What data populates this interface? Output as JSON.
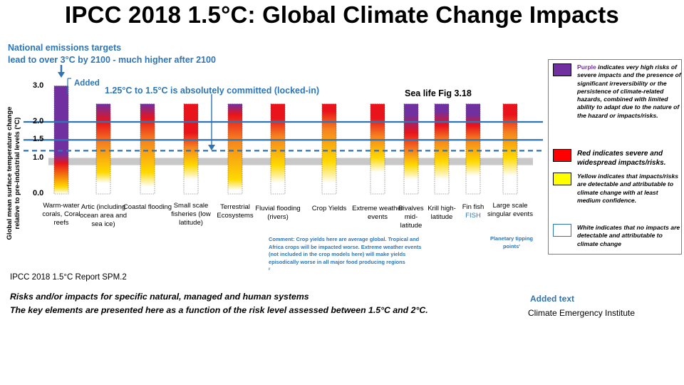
{
  "title": "IPCC 2018 1.5°C: Global Climate Change Impacts",
  "annotations": {
    "national_targets_line1": "National emissions targets",
    "national_targets_line2": "lead to over 3°C by 2100  - much higher after 2100",
    "added": "Added",
    "locked_in": "1.25°C  to 1.5°C is absolutely committed (locked-in)",
    "sea_life": "Sea life Fig 3.18",
    "comment": "Comment:  Crop yields here are average  global.  Tropical  and  Africa  crops will be impacted  worse.  Extreme weather events (not included in the crop models here) will make  yields episodically worse in all  major  food producing regions",
    "comment_tail": "r",
    "planetary_tipping": "Planetary tipping points'",
    "report_ref": "IPCC 2018 1.5°C Report SPM.2",
    "risk_line1": "Risks and/or impacts for specific natural, managed and human systems",
    "risk_line2": "The key elements are presented here as a function of the risk level assessed between 1.5°C and 2°C.",
    "added_text": "Added text",
    "institute": "Climate Emergency Institute"
  },
  "legend": [
    {
      "color": "#7030a0",
      "lead": "Purple",
      "text": " indicates very high risks of severe impacts and the presence of significant irreversibility or the persistence of climate-related hazards, combined with limited ability to adapt due to the nature of the hazard or impacts/risks."
    },
    {
      "color": "#ff0000",
      "lead": "",
      "text": "Red indicates severe and widespread impacts/risks."
    },
    {
      "color": "#ffff00",
      "lead": "",
      "text": "Yellow indicates that impacts/risks are detectable and attributable to climate change with at least medium confidence."
    },
    {
      "color": "#ffffff",
      "lead": "",
      "text": "White indicates that no impacts are detectable and attributable to climate change"
    }
  ],
  "colors": {
    "purple": "#7030a0",
    "red": "#e8131b",
    "orange": "#f58220",
    "yellow": "#ffd900",
    "line_blue": "#2e75b6",
    "gray_band": "#c8c8c8"
  },
  "chart_data": {
    "type": "bar",
    "ylabel": "Global mean surface temperature change relative to pre-industrial levels (°C)",
    "yticks": [
      "0.0",
      "1.0",
      "1.5",
      "2.0",
      "3.0"
    ],
    "ylim": [
      0,
      3.0
    ],
    "horizontal_lines": [
      {
        "y": 2.0,
        "style": "solid"
      },
      {
        "y": 1.5,
        "style": "solid"
      },
      {
        "y": 1.2,
        "style": "dashed"
      }
    ],
    "observed_band": [
      0.8,
      1.0
    ],
    "categories": [
      {
        "label": "Warm-water corals, Coral reefs",
        "top": 3.0,
        "stops": [
          [
            0.0,
            "white"
          ],
          [
            0.2,
            "yellow"
          ],
          [
            0.85,
            "red"
          ],
          [
            1.1,
            "purple"
          ],
          [
            3.0,
            "purple"
          ]
        ]
      },
      {
        "label": "Artic (including ocean area and sea ice)",
        "top": 2.5,
        "stops": [
          [
            0.3,
            "white"
          ],
          [
            0.6,
            "yellow"
          ],
          [
            1.4,
            "orange"
          ],
          [
            2.0,
            "red"
          ],
          [
            2.5,
            "purple"
          ]
        ]
      },
      {
        "label": "Coastal flooding",
        "top": 2.5,
        "stops": [
          [
            0.2,
            "white"
          ],
          [
            0.6,
            "yellow"
          ],
          [
            1.5,
            "orange"
          ],
          [
            2.1,
            "red"
          ],
          [
            2.5,
            "purple"
          ]
        ]
      },
      {
        "label": "Small scale fisheries (low latitude)",
        "top": 2.5,
        "stops": [
          [
            0.4,
            "white"
          ],
          [
            0.8,
            "yellow"
          ],
          [
            1.3,
            "orange"
          ],
          [
            1.7,
            "red"
          ],
          [
            2.5,
            "red"
          ]
        ]
      },
      {
        "label": "Terrestrial Ecosystems",
        "top": 2.5,
        "stops": [
          [
            0.1,
            "white"
          ],
          [
            0.4,
            "yellow"
          ],
          [
            1.5,
            "orange"
          ],
          [
            2.2,
            "red"
          ],
          [
            2.5,
            "purple"
          ]
        ]
      },
      {
        "label": "Fluvial flooding (rivers)",
        "top": 2.5,
        "stops": [
          [
            0.3,
            "white"
          ],
          [
            0.8,
            "yellow"
          ],
          [
            1.6,
            "orange"
          ],
          [
            2.1,
            "red"
          ],
          [
            2.5,
            "red"
          ]
        ]
      },
      {
        "label": "Crop Yields",
        "top": 2.5,
        "stops": [
          [
            0.3,
            "white"
          ],
          [
            0.9,
            "yellow"
          ],
          [
            1.8,
            "orange"
          ],
          [
            2.3,
            "red"
          ],
          [
            2.5,
            "red"
          ]
        ]
      },
      {
        "label": "Extreme weather events",
        "top": 2.5,
        "stops": [
          [
            0.6,
            "white"
          ],
          [
            1.0,
            "yellow"
          ],
          [
            1.6,
            "orange"
          ],
          [
            2.1,
            "red"
          ],
          [
            2.5,
            "red"
          ]
        ]
      },
      {
        "label": "Bivalves mid-latitude",
        "top": 2.5,
        "stops": [
          [
            0.4,
            "white"
          ],
          [
            0.8,
            "yellow"
          ],
          [
            1.2,
            "orange"
          ],
          [
            1.7,
            "red"
          ],
          [
            2.2,
            "purple"
          ],
          [
            2.5,
            "purple"
          ]
        ]
      },
      {
        "label": "Krill high-latitude",
        "top": 2.5,
        "stops": [
          [
            0.4,
            "white"
          ],
          [
            0.9,
            "yellow"
          ],
          [
            1.5,
            "orange"
          ],
          [
            1.9,
            "red"
          ],
          [
            2.3,
            "purple"
          ],
          [
            2.5,
            "purple"
          ]
        ]
      },
      {
        "label": "Fin fish",
        "label2": "FISH",
        "top": 2.5,
        "stops": [
          [
            0.5,
            "white"
          ],
          [
            0.9,
            "yellow"
          ],
          [
            1.5,
            "orange"
          ],
          [
            1.9,
            "red"
          ],
          [
            2.2,
            "purple"
          ],
          [
            2.5,
            "purple"
          ]
        ]
      },
      {
        "label": "Large scale singular events",
        "top": 2.5,
        "stops": [
          [
            0.5,
            "white"
          ],
          [
            1.0,
            "yellow"
          ],
          [
            1.7,
            "orange"
          ],
          [
            2.2,
            "red"
          ],
          [
            2.5,
            "red"
          ]
        ]
      }
    ]
  }
}
